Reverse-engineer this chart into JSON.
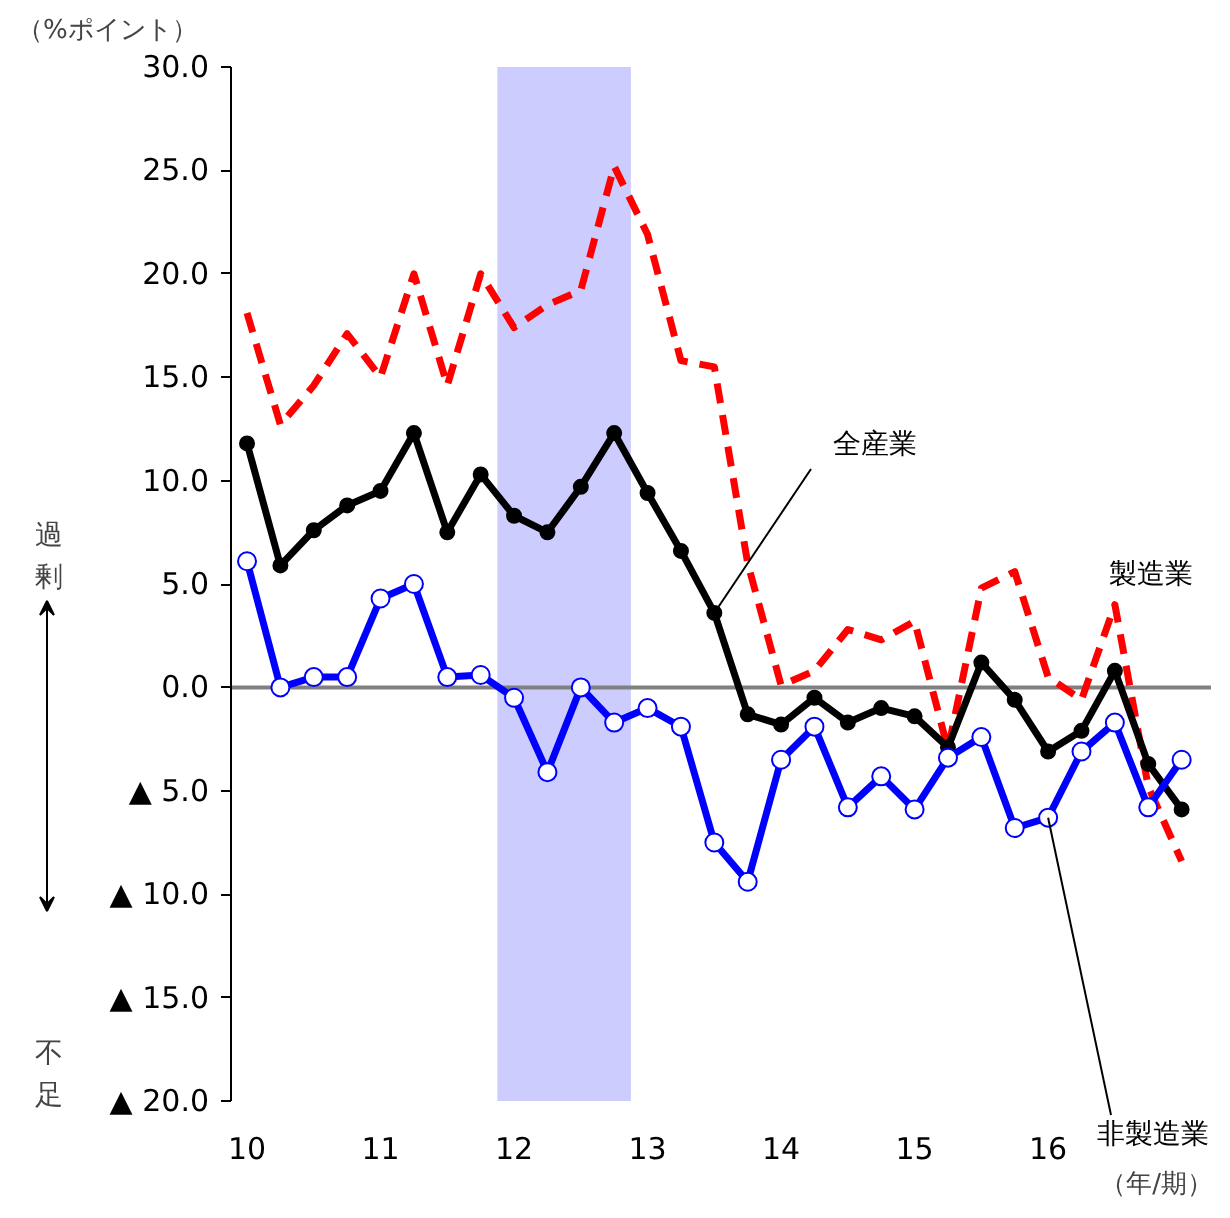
{
  "chart_data": {
    "type": "line",
    "ylabel": "（%ポイント）",
    "xlabel": "（年/期）",
    "x": [
      10,
      10.25,
      10.5,
      10.75,
      11,
      11.25,
      11.5,
      11.75,
      12,
      12.25,
      12.5,
      12.75,
      13,
      13.25,
      13.5,
      13.75,
      14,
      14.25,
      14.5,
      14.75,
      15,
      15.25,
      15.5,
      15.75,
      16,
      16.25,
      16.5,
      16.75,
      17
    ],
    "series": [
      {
        "name": "製造業",
        "color": "#ff0000",
        "line_style": "dashed",
        "marker": "none",
        "values": [
          18.1,
          12.7,
          14.6,
          17.1,
          15.0,
          20.0,
          14.6,
          20.0,
          17.4,
          18.5,
          19.2,
          25.2,
          21.9,
          15.8,
          15.5,
          6.0,
          0.1,
          0.8,
          2.8,
          2.3,
          3.2,
          -3.0,
          4.8,
          5.6,
          0.5,
          -0.6,
          4.0,
          -4.8,
          -8.4
        ]
      },
      {
        "name": "全産業",
        "color": "#000000",
        "line_style": "solid",
        "marker": "circle",
        "values": [
          11.8,
          5.9,
          7.6,
          8.8,
          9.5,
          12.3,
          7.5,
          10.3,
          8.3,
          7.5,
          9.7,
          12.3,
          9.4,
          6.6,
          3.6,
          -1.3,
          -1.8,
          -0.5,
          -1.7,
          -1.0,
          -1.4,
          -2.9,
          1.2,
          -0.6,
          -3.1,
          -2.1,
          0.8,
          -3.7,
          -5.9
        ]
      },
      {
        "name": "非製造業",
        "color": "#0000ff",
        "line_style": "solid",
        "marker": "circle",
        "values": [
          6.1,
          0.0,
          0.5,
          0.5,
          4.3,
          5.0,
          0.5,
          0.6,
          -0.5,
          -4.1,
          0.0,
          -1.7,
          -1.0,
          -1.9,
          -7.5,
          -9.4,
          -3.5,
          -1.9,
          -5.8,
          -4.3,
          -5.9,
          -3.4,
          -2.4,
          -6.8,
          -6.3,
          -3.1,
          -1.7,
          -5.8,
          -3.5
        ]
      }
    ],
    "xlim": [
      9.88,
      17.22
    ],
    "xticks": [
      10,
      11,
      12,
      13,
      14,
      15,
      16
    ],
    "ylim": [
      -20,
      30
    ],
    "yticks": [
      {
        "value": -20,
        "label": "▲ 20.0"
      },
      {
        "value": -15,
        "label": "▲ 15.0"
      },
      {
        "value": -10,
        "label": "▲ 10.0"
      },
      {
        "value": -5,
        "label": "▲ 5.0"
      },
      {
        "value": 0,
        "label": "0.0"
      },
      {
        "value": 5,
        "label": "5.0"
      },
      {
        "value": 10,
        "label": "10.0"
      },
      {
        "value": 15,
        "label": "15.0"
      },
      {
        "value": 20,
        "label": "20.0"
      },
      {
        "value": 25,
        "label": "25.0"
      },
      {
        "value": 30,
        "label": "30.0"
      }
    ],
    "bands": [
      {
        "axis": "x",
        "from": 11.875,
        "to": 12.875,
        "color": "#ccccff"
      }
    ],
    "ref_lines": [
      {
        "axis": "y",
        "value": 0,
        "color": "#808080"
      }
    ],
    "annotations": [
      "過剰",
      "不足"
    ],
    "grid": false
  }
}
